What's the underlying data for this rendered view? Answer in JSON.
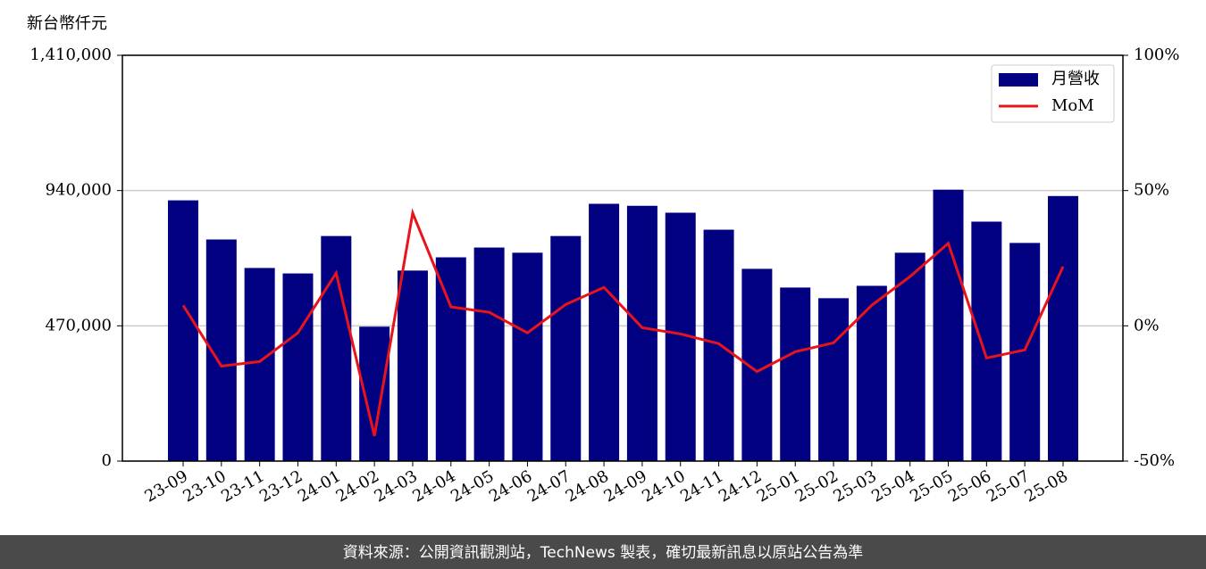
{
  "chart_data": {
    "type": "bar_line",
    "y_label": "新台幣仟元",
    "categories": [
      "23-09",
      "23-10",
      "23-11",
      "23-12",
      "24-01",
      "24-02",
      "24-03",
      "24-04",
      "24-05",
      "24-06",
      "24-07",
      "24-08",
      "24-09",
      "24-10",
      "24-11",
      "24-12",
      "25-01",
      "25-02",
      "25-03",
      "25-04",
      "25-05",
      "25-06",
      "25-07",
      "25-08"
    ],
    "series": [
      {
        "name": "月營收",
        "type": "bar",
        "color": "#000080",
        "axis": "y",
        "values": [
          906000,
          770000,
          671000,
          652000,
          782000,
          467000,
          662000,
          708000,
          742000,
          724000,
          782000,
          894000,
          887000,
          863000,
          804000,
          668000,
          603000,
          566000,
          609000,
          724000,
          943000,
          832000,
          758000,
          921000
        ]
      },
      {
        "name": "MoM",
        "type": "line",
        "color": "#e8141b",
        "axis": "y2",
        "values": [
          7.6,
          -14.9,
          -13.2,
          -2.6,
          19.5,
          -40.7,
          41.7,
          7.0,
          5.0,
          -2.6,
          7.9,
          14.2,
          -0.7,
          -3.0,
          -6.6,
          -16.9,
          -9.6,
          -6.3,
          7.6,
          18.2,
          30.5,
          -11.9,
          -8.9,
          21.9
        ]
      }
    ],
    "ylim": [
      0,
      1410000
    ],
    "yticks": [
      0,
      {
        "value": 470000,
        "label": "470,000"
      },
      {
        "value": 940000,
        "label": "940,000"
      },
      {
        "value": 1410000,
        "label": "1,410,000"
      }
    ],
    "y2lim": [
      -50,
      100
    ],
    "y2ticks": [
      {
        "value": -50,
        "label": "-50%"
      },
      {
        "value": 0,
        "label": "0%"
      },
      {
        "value": 50,
        "label": "50%"
      },
      {
        "value": 100,
        "label": "100%"
      }
    ],
    "grid": true,
    "legend": "upper right",
    "footer": "資料來源：公開資訊觀測站，TechNews 製表，確切最新訊息以原站公告為準"
  }
}
